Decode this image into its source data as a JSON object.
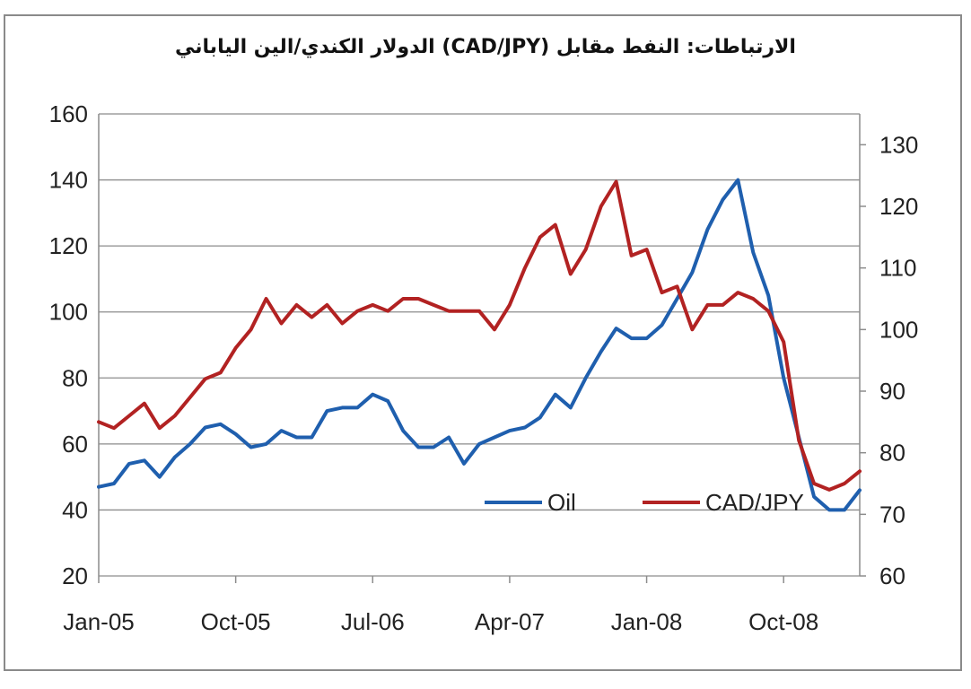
{
  "chart_data": {
    "type": "line",
    "title": "الارتباطات: النفط مقابل (CAD/JPY) الدولار الكندي/الين الياباني",
    "x_ticks": [
      "Jan-05",
      "Oct-05",
      "Jul-06",
      "Apr-07",
      "Jan-08",
      "Oct-08"
    ],
    "x_range": [
      "2005-01",
      "2009-03"
    ],
    "left_axis": {
      "ylim": [
        20,
        160
      ],
      "ticks": [
        20,
        40,
        60,
        80,
        100,
        120,
        140,
        160
      ]
    },
    "right_axis": {
      "ylim": [
        60,
        135
      ],
      "ticks": [
        60,
        70,
        80,
        90,
        100,
        110,
        120,
        130
      ]
    },
    "grid": true,
    "legend": {
      "placement": "bottom-right"
    },
    "series": [
      {
        "name": "Oil",
        "axis": "left",
        "color": "#1f5fae",
        "x": [
          "2005-01",
          "2005-02",
          "2005-03",
          "2005-04",
          "2005-05",
          "2005-06",
          "2005-07",
          "2005-08",
          "2005-09",
          "2005-10",
          "2005-11",
          "2005-12",
          "2006-01",
          "2006-02",
          "2006-03",
          "2006-04",
          "2006-05",
          "2006-06",
          "2006-07",
          "2006-08",
          "2006-09",
          "2006-10",
          "2006-11",
          "2006-12",
          "2007-01",
          "2007-02",
          "2007-03",
          "2007-04",
          "2007-05",
          "2007-06",
          "2007-07",
          "2007-08",
          "2007-09",
          "2007-10",
          "2007-11",
          "2007-12",
          "2008-01",
          "2008-02",
          "2008-03",
          "2008-04",
          "2008-05",
          "2008-06",
          "2008-07",
          "2008-08",
          "2008-09",
          "2008-10",
          "2008-11",
          "2008-12",
          "2009-01",
          "2009-02",
          "2009-03"
        ],
        "values": [
          47,
          48,
          54,
          55,
          50,
          56,
          60,
          65,
          66,
          63,
          59,
          60,
          64,
          62,
          62,
          70,
          71,
          71,
          75,
          73,
          64,
          59,
          59,
          62,
          54,
          60,
          62,
          64,
          65,
          68,
          75,
          71,
          80,
          88,
          95,
          92,
          92,
          96,
          104,
          112,
          125,
          134,
          140,
          118,
          105,
          80,
          62,
          44,
          40,
          40,
          46
        ]
      },
      {
        "name": "CAD/JPY",
        "axis": "right",
        "color": "#b22222",
        "x": [
          "2005-01",
          "2005-02",
          "2005-03",
          "2005-04",
          "2005-05",
          "2005-06",
          "2005-07",
          "2005-08",
          "2005-09",
          "2005-10",
          "2005-11",
          "2005-12",
          "2006-01",
          "2006-02",
          "2006-03",
          "2006-04",
          "2006-05",
          "2006-06",
          "2006-07",
          "2006-08",
          "2006-09",
          "2006-10",
          "2006-11",
          "2006-12",
          "2007-01",
          "2007-02",
          "2007-03",
          "2007-04",
          "2007-05",
          "2007-06",
          "2007-07",
          "2007-08",
          "2007-09",
          "2007-10",
          "2007-11",
          "2007-12",
          "2008-01",
          "2008-02",
          "2008-03",
          "2008-04",
          "2008-05",
          "2008-06",
          "2008-07",
          "2008-08",
          "2008-09",
          "2008-10",
          "2008-11",
          "2008-12",
          "2009-01",
          "2009-02",
          "2009-03"
        ],
        "values": [
          85,
          84,
          86,
          88,
          84,
          86,
          89,
          92,
          93,
          97,
          100,
          105,
          101,
          104,
          102,
          104,
          101,
          103,
          104,
          103,
          105,
          105,
          104,
          103,
          103,
          103,
          100,
          104,
          110,
          115,
          117,
          109,
          113,
          120,
          124,
          112,
          113,
          106,
          107,
          100,
          104,
          104,
          106,
          105,
          103,
          98,
          82,
          75,
          74,
          75,
          77
        ]
      }
    ]
  }
}
